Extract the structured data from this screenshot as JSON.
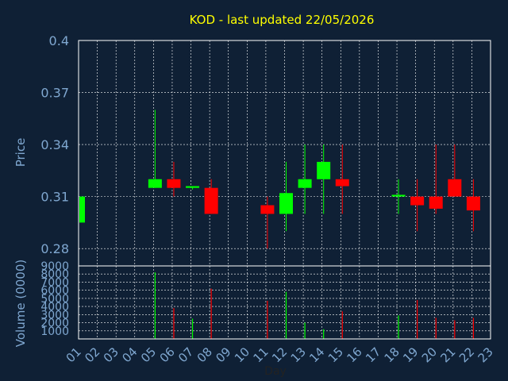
{
  "title": "KOD - last updated 22/05/2026",
  "colors": {
    "background": "#0f2035",
    "title": "#ffff00",
    "axis_text": "#7fa7d0",
    "frame": "#ffffff",
    "grid": "#ffffff",
    "up": "#00ff00",
    "down": "#ff0000"
  },
  "chart_data": [
    {
      "type": "candlestick",
      "title": "KOD - last updated 22/05/2026",
      "ylabel": "Price",
      "ylim": [
        0.27,
        0.4
      ],
      "yticks": [
        0.28,
        0.31,
        0.34,
        0.37,
        0.4
      ],
      "ytick_labels": [
        "0.28",
        "0.31",
        "0.34",
        "0.37",
        "0.4"
      ],
      "grid": true,
      "candles": [
        {
          "day": "01",
          "open": 0.295,
          "high": 0.31,
          "low": 0.295,
          "close": 0.31
        },
        {
          "day": "05",
          "open": 0.315,
          "high": 0.36,
          "low": 0.315,
          "close": 0.32
        },
        {
          "day": "06",
          "open": 0.32,
          "high": 0.33,
          "low": 0.31,
          "close": 0.315
        },
        {
          "day": "07",
          "open": 0.315,
          "high": 0.316,
          "low": 0.314,
          "close": 0.316
        },
        {
          "day": "08",
          "open": 0.315,
          "high": 0.32,
          "low": 0.3,
          "close": 0.3
        },
        {
          "day": "11",
          "open": 0.305,
          "high": 0.31,
          "low": 0.28,
          "close": 0.3
        },
        {
          "day": "12",
          "open": 0.3,
          "high": 0.33,
          "low": 0.29,
          "close": 0.312
        },
        {
          "day": "13",
          "open": 0.315,
          "high": 0.34,
          "low": 0.3,
          "close": 0.32
        },
        {
          "day": "14",
          "open": 0.32,
          "high": 0.34,
          "low": 0.3,
          "close": 0.33
        },
        {
          "day": "15",
          "open": 0.32,
          "high": 0.34,
          "low": 0.3,
          "close": 0.316
        },
        {
          "day": "18",
          "open": 0.31,
          "high": 0.32,
          "low": 0.3,
          "close": 0.311
        },
        {
          "day": "19",
          "open": 0.31,
          "high": 0.32,
          "low": 0.29,
          "close": 0.305
        },
        {
          "day": "20",
          "open": 0.31,
          "high": 0.34,
          "low": 0.3,
          "close": 0.303
        },
        {
          "day": "21",
          "open": 0.32,
          "high": 0.34,
          "low": 0.31,
          "close": 0.31
        },
        {
          "day": "22",
          "open": 0.31,
          "high": 0.32,
          "low": 0.29,
          "close": 0.302
        }
      ]
    },
    {
      "type": "bar",
      "ylabel": "Volume (0000)",
      "xlabel": "Day",
      "ylim": [
        0,
        9000
      ],
      "yticks": [
        1000,
        2000,
        3000,
        4000,
        5000,
        6000,
        7000,
        8000,
        9000
      ],
      "ytick_labels": [
        "1000",
        "2000",
        "3000",
        "4000",
        "5000",
        "6000",
        "7000",
        "8000",
        "9000"
      ],
      "categories": [
        "01",
        "02",
        "03",
        "04",
        "05",
        "06",
        "07",
        "08",
        "09",
        "10",
        "11",
        "12",
        "13",
        "14",
        "15",
        "16",
        "17",
        "18",
        "19",
        "20",
        "21",
        "22",
        "23"
      ],
      "bars": [
        {
          "day": "05",
          "value": 8200,
          "direction": "up"
        },
        {
          "day": "06",
          "value": 3800,
          "direction": "down"
        },
        {
          "day": "07",
          "value": 2500,
          "direction": "up"
        },
        {
          "day": "08",
          "value": 6200,
          "direction": "down"
        },
        {
          "day": "11",
          "value": 4700,
          "direction": "down"
        },
        {
          "day": "12",
          "value": 5800,
          "direction": "up"
        },
        {
          "day": "13",
          "value": 2000,
          "direction": "up"
        },
        {
          "day": "14",
          "value": 1200,
          "direction": "up"
        },
        {
          "day": "15",
          "value": 3400,
          "direction": "down"
        },
        {
          "day": "18",
          "value": 2900,
          "direction": "up"
        },
        {
          "day": "19",
          "value": 4800,
          "direction": "down"
        },
        {
          "day": "20",
          "value": 2600,
          "direction": "down"
        },
        {
          "day": "21",
          "value": 2300,
          "direction": "down"
        },
        {
          "day": "22",
          "value": 2600,
          "direction": "down"
        }
      ],
      "grid": true
    }
  ]
}
